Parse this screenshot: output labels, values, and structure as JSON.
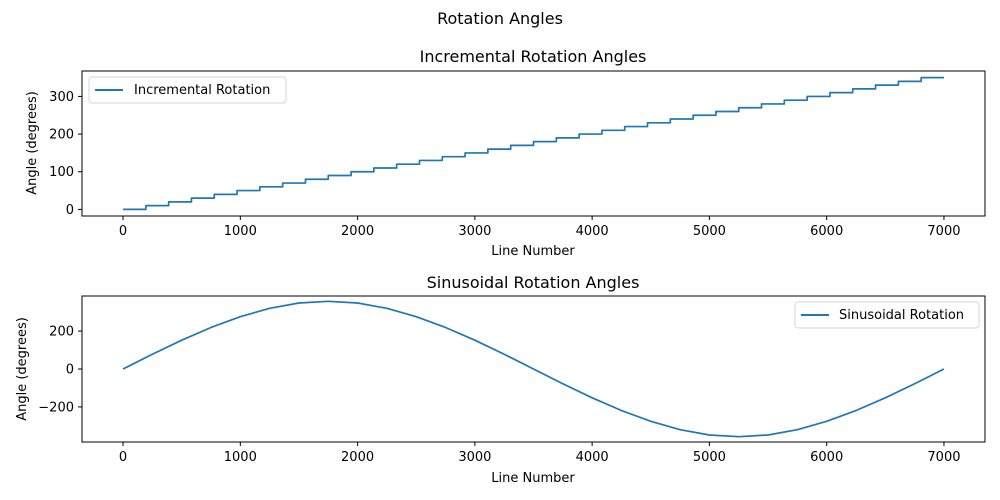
{
  "figure": {
    "title": "Rotation Angles"
  },
  "colors": {
    "series": "#1f77b4"
  },
  "chart_data": [
    {
      "type": "line",
      "title": "Incremental Rotation Angles",
      "xlabel": "Line Number",
      "ylabel": "Angle (degrees)",
      "xlim": [
        -350,
        7350
      ],
      "ylim": [
        -17.5,
        367.5
      ],
      "xticks": [
        0,
        1000,
        2000,
        3000,
        4000,
        5000,
        6000,
        7000
      ],
      "xtick_labels": [
        "0",
        "1000",
        "2000",
        "3000",
        "4000",
        "5000",
        "6000",
        "7000"
      ],
      "yticks": [
        0,
        100,
        200,
        300
      ],
      "ytick_labels": [
        "0",
        "100",
        "200",
        "300"
      ],
      "grid": false,
      "legend": "upper-left",
      "series": [
        {
          "name": "Incremental Rotation",
          "step": true,
          "x": [
            0,
            194.4,
            388.9,
            583.3,
            777.8,
            972.2,
            1166.7,
            1361.1,
            1555.6,
            1750,
            1944.4,
            2138.9,
            2333.3,
            2527.8,
            2722.2,
            2916.7,
            3111.1,
            3305.6,
            3500,
            3694.4,
            3888.9,
            4083.3,
            4277.8,
            4472.2,
            4666.7,
            4861.1,
            5055.6,
            5250,
            5444.4,
            5638.9,
            5833.3,
            6027.8,
            6222.2,
            6416.7,
            6611.1,
            6805.6,
            7000
          ],
          "y": [
            0,
            10,
            20,
            30,
            40,
            50,
            60,
            70,
            80,
            90,
            100,
            110,
            120,
            130,
            140,
            150,
            160,
            170,
            180,
            190,
            200,
            210,
            220,
            230,
            240,
            250,
            260,
            270,
            280,
            290,
            300,
            310,
            320,
            330,
            340,
            350,
            350
          ]
        }
      ]
    },
    {
      "type": "line",
      "title": "Sinusoidal Rotation Angles",
      "xlabel": "Line Number",
      "ylabel": "Angle (degrees)",
      "xlim": [
        -350,
        7350
      ],
      "ylim": [
        -385,
        385
      ],
      "xticks": [
        0,
        1000,
        2000,
        3000,
        4000,
        5000,
        6000,
        7000
      ],
      "xtick_labels": [
        "0",
        "1000",
        "2000",
        "3000",
        "4000",
        "5000",
        "6000",
        "7000"
      ],
      "yticks": [
        -200,
        0,
        200
      ],
      "ytick_labels": [
        "−200",
        "0",
        "200"
      ],
      "grid": false,
      "legend": "upper-right",
      "series": [
        {
          "name": "Sinusoidal Rotation",
          "step": false,
          "x": [
            0,
            250,
            500,
            750,
            1000,
            1250,
            1500,
            1750,
            2000,
            2250,
            2500,
            2750,
            3000,
            3250,
            3500,
            3750,
            4000,
            4250,
            4500,
            4750,
            5000,
            5250,
            5500,
            5750,
            6000,
            6250,
            6500,
            6750,
            7000
          ],
          "y": [
            0,
            78,
            152,
            219,
            276,
            320,
            348,
            357,
            348,
            320,
            276,
            219,
            152,
            78,
            0,
            -78,
            -152,
            -219,
            -276,
            -320,
            -348,
            -357,
            -348,
            -320,
            -276,
            -219,
            -152,
            -78,
            0
          ]
        }
      ]
    }
  ]
}
